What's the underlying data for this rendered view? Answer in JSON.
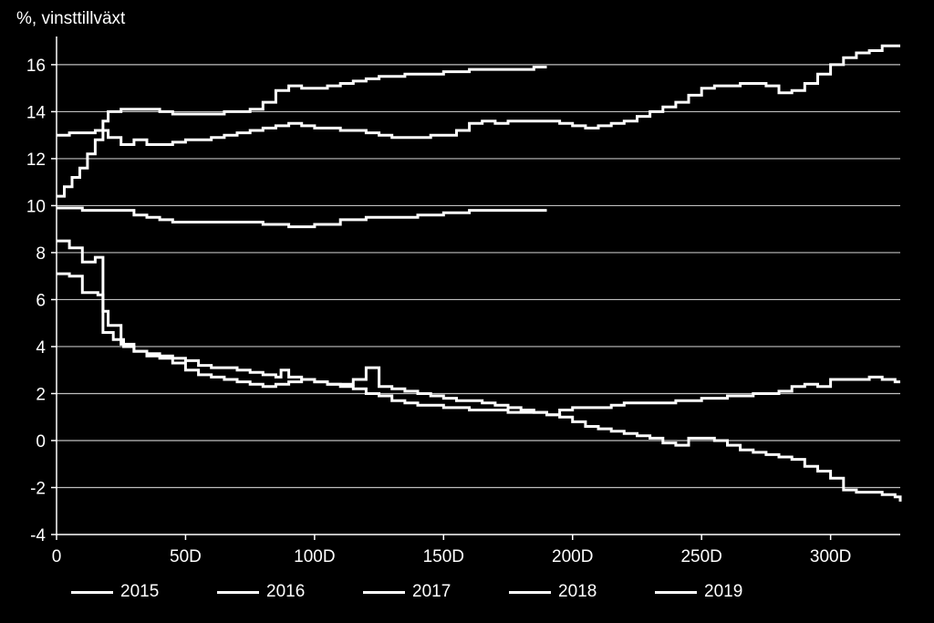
{
  "chart_data": {
    "type": "line",
    "ylabel": "%, vinsttillväxt",
    "xlabel": "",
    "xlim": [
      0,
      327
    ],
    "ylim": [
      -4,
      17.2
    ],
    "yticks": [
      -4,
      -2,
      0,
      2,
      4,
      6,
      8,
      10,
      12,
      14,
      16
    ],
    "xticks": [
      {
        "value": 0,
        "label": "0"
      },
      {
        "value": 50,
        "label": "50D"
      },
      {
        "value": 100,
        "label": "100D"
      },
      {
        "value": 150,
        "label": "150D"
      },
      {
        "value": 200,
        "label": "200D"
      },
      {
        "value": 250,
        "label": "250D"
      },
      {
        "value": 300,
        "label": "300D"
      }
    ],
    "grid": "horizontal",
    "colors": {
      "background": "#000000",
      "line": "#ffffff",
      "grid": "#bfbfbf"
    },
    "legend_position": "bottom",
    "series": [
      {
        "name": "2015",
        "x": [
          0,
          5,
          10,
          15,
          18,
          22,
          26,
          30,
          35,
          40,
          45,
          50,
          55,
          60,
          65,
          70,
          75,
          80,
          85,
          87,
          90,
          95,
          100,
          105,
          110,
          115,
          120,
          122,
          125,
          130,
          135,
          140,
          145,
          150,
          155,
          160,
          165,
          170,
          175,
          180,
          185,
          190,
          195,
          200,
          205,
          210,
          215,
          220,
          225,
          230,
          235,
          240,
          245,
          250,
          255,
          260,
          265,
          270,
          275,
          280,
          285,
          290,
          295,
          300,
          305,
          310,
          315,
          320,
          325,
          327
        ],
        "y": [
          8.5,
          8.2,
          7.6,
          7.8,
          4.6,
          4.3,
          4.0,
          3.8,
          3.7,
          3.6,
          3.5,
          3.4,
          3.2,
          3.1,
          3.1,
          3.0,
          2.9,
          2.8,
          2.7,
          3.0,
          2.7,
          2.6,
          2.5,
          2.4,
          2.4,
          2.6,
          3.1,
          3.1,
          2.3,
          2.2,
          2.1,
          2.0,
          1.9,
          1.8,
          1.7,
          1.7,
          1.6,
          1.5,
          1.4,
          1.3,
          1.2,
          1.1,
          1.0,
          0.8,
          0.6,
          0.5,
          0.4,
          0.3,
          0.2,
          0.1,
          -0.1,
          -0.2,
          0.1,
          0.1,
          0.0,
          -0.2,
          -0.4,
          -0.5,
          -0.6,
          -0.7,
          -0.8,
          -1.1,
          -1.3,
          -1.6,
          -2.1,
          -2.2,
          -2.2,
          -2.3,
          -2.4,
          -2.6
        ]
      },
      {
        "name": "2016",
        "x": [
          0,
          5,
          10,
          13,
          16,
          18,
          20,
          25,
          30,
          35,
          40,
          45,
          50,
          55,
          60,
          65,
          70,
          75,
          80,
          85,
          90,
          95,
          100,
          105,
          110,
          115,
          120,
          125,
          130,
          135,
          140,
          145,
          150,
          155,
          160,
          165,
          170,
          175,
          180,
          185,
          190,
          195,
          200,
          205,
          210,
          215,
          220,
          225,
          230,
          235,
          240,
          245,
          250,
          255,
          260,
          265,
          270,
          275,
          280,
          285,
          290,
          295,
          300,
          305,
          310,
          315,
          320,
          325,
          327
        ],
        "y": [
          7.1,
          7.0,
          6.3,
          6.3,
          6.2,
          5.5,
          4.9,
          4.1,
          3.8,
          3.6,
          3.5,
          3.3,
          3.0,
          2.8,
          2.7,
          2.6,
          2.5,
          2.4,
          2.3,
          2.4,
          2.5,
          2.6,
          2.5,
          2.4,
          2.3,
          2.2,
          2.0,
          1.9,
          1.7,
          1.6,
          1.5,
          1.5,
          1.4,
          1.4,
          1.3,
          1.3,
          1.3,
          1.2,
          1.2,
          1.2,
          1.1,
          1.3,
          1.4,
          1.4,
          1.4,
          1.5,
          1.6,
          1.6,
          1.6,
          1.6,
          1.7,
          1.7,
          1.8,
          1.8,
          1.9,
          1.9,
          2.0,
          2.0,
          2.1,
          2.3,
          2.4,
          2.3,
          2.6,
          2.6,
          2.6,
          2.7,
          2.6,
          2.5,
          2.5
        ]
      },
      {
        "name": "2017",
        "x": [
          0,
          10,
          20,
          30,
          35,
          40,
          45,
          50,
          60,
          70,
          80,
          90,
          100,
          110,
          120,
          130,
          140,
          150,
          160,
          170,
          180,
          185,
          190
        ],
        "y": [
          9.9,
          9.8,
          9.8,
          9.6,
          9.5,
          9.4,
          9.3,
          9.3,
          9.3,
          9.3,
          9.2,
          9.1,
          9.2,
          9.4,
          9.5,
          9.5,
          9.6,
          9.7,
          9.8,
          9.8,
          9.8,
          9.8,
          9.8
        ]
      },
      {
        "name": "2018",
        "x": [
          0,
          5,
          10,
          15,
          18,
          20,
          25,
          30,
          35,
          40,
          45,
          50,
          55,
          60,
          65,
          70,
          75,
          80,
          85,
          90,
          95,
          100,
          105,
          110,
          115,
          120,
          125,
          130,
          135,
          140,
          145,
          150,
          155,
          160,
          165,
          170,
          175,
          180,
          185,
          190,
          195,
          200,
          205,
          210,
          215,
          220,
          225,
          230,
          235,
          240,
          245,
          250,
          255,
          260,
          265,
          270,
          275,
          280,
          285,
          290,
          295,
          300,
          305,
          310,
          315,
          320,
          325,
          327
        ],
        "y": [
          13.0,
          13.1,
          13.1,
          13.2,
          13.2,
          12.9,
          12.6,
          12.8,
          12.6,
          12.6,
          12.7,
          12.8,
          12.8,
          12.9,
          13.0,
          13.1,
          13.2,
          13.3,
          13.4,
          13.5,
          13.4,
          13.3,
          13.3,
          13.2,
          13.2,
          13.1,
          13.0,
          12.9,
          12.9,
          12.9,
          13.0,
          13.0,
          13.2,
          13.5,
          13.6,
          13.5,
          13.6,
          13.6,
          13.6,
          13.6,
          13.5,
          13.4,
          13.3,
          13.4,
          13.5,
          13.6,
          13.8,
          14.0,
          14.2,
          14.4,
          14.7,
          15.0,
          15.1,
          15.1,
          15.2,
          15.2,
          15.1,
          14.8,
          14.9,
          15.2,
          15.6,
          16.0,
          16.3,
          16.5,
          16.6,
          16.8,
          16.8,
          16.8
        ]
      },
      {
        "name": "2019",
        "x": [
          0,
          3,
          6,
          9,
          12,
          15,
          18,
          20,
          25,
          30,
          35,
          40,
          45,
          50,
          55,
          60,
          65,
          70,
          75,
          80,
          85,
          90,
          95,
          100,
          105,
          110,
          115,
          120,
          125,
          130,
          135,
          140,
          145,
          150,
          155,
          160,
          165,
          170,
          175,
          180,
          185,
          190
        ],
        "y": [
          10.4,
          10.8,
          11.2,
          11.6,
          12.2,
          12.8,
          13.6,
          14.0,
          14.1,
          14.1,
          14.1,
          14.0,
          13.9,
          13.9,
          13.9,
          13.9,
          14.0,
          14.0,
          14.1,
          14.4,
          14.9,
          15.1,
          15.0,
          15.0,
          15.1,
          15.2,
          15.3,
          15.4,
          15.5,
          15.5,
          15.6,
          15.6,
          15.6,
          15.7,
          15.7,
          15.8,
          15.8,
          15.8,
          15.8,
          15.8,
          15.9,
          15.9
        ]
      }
    ]
  }
}
